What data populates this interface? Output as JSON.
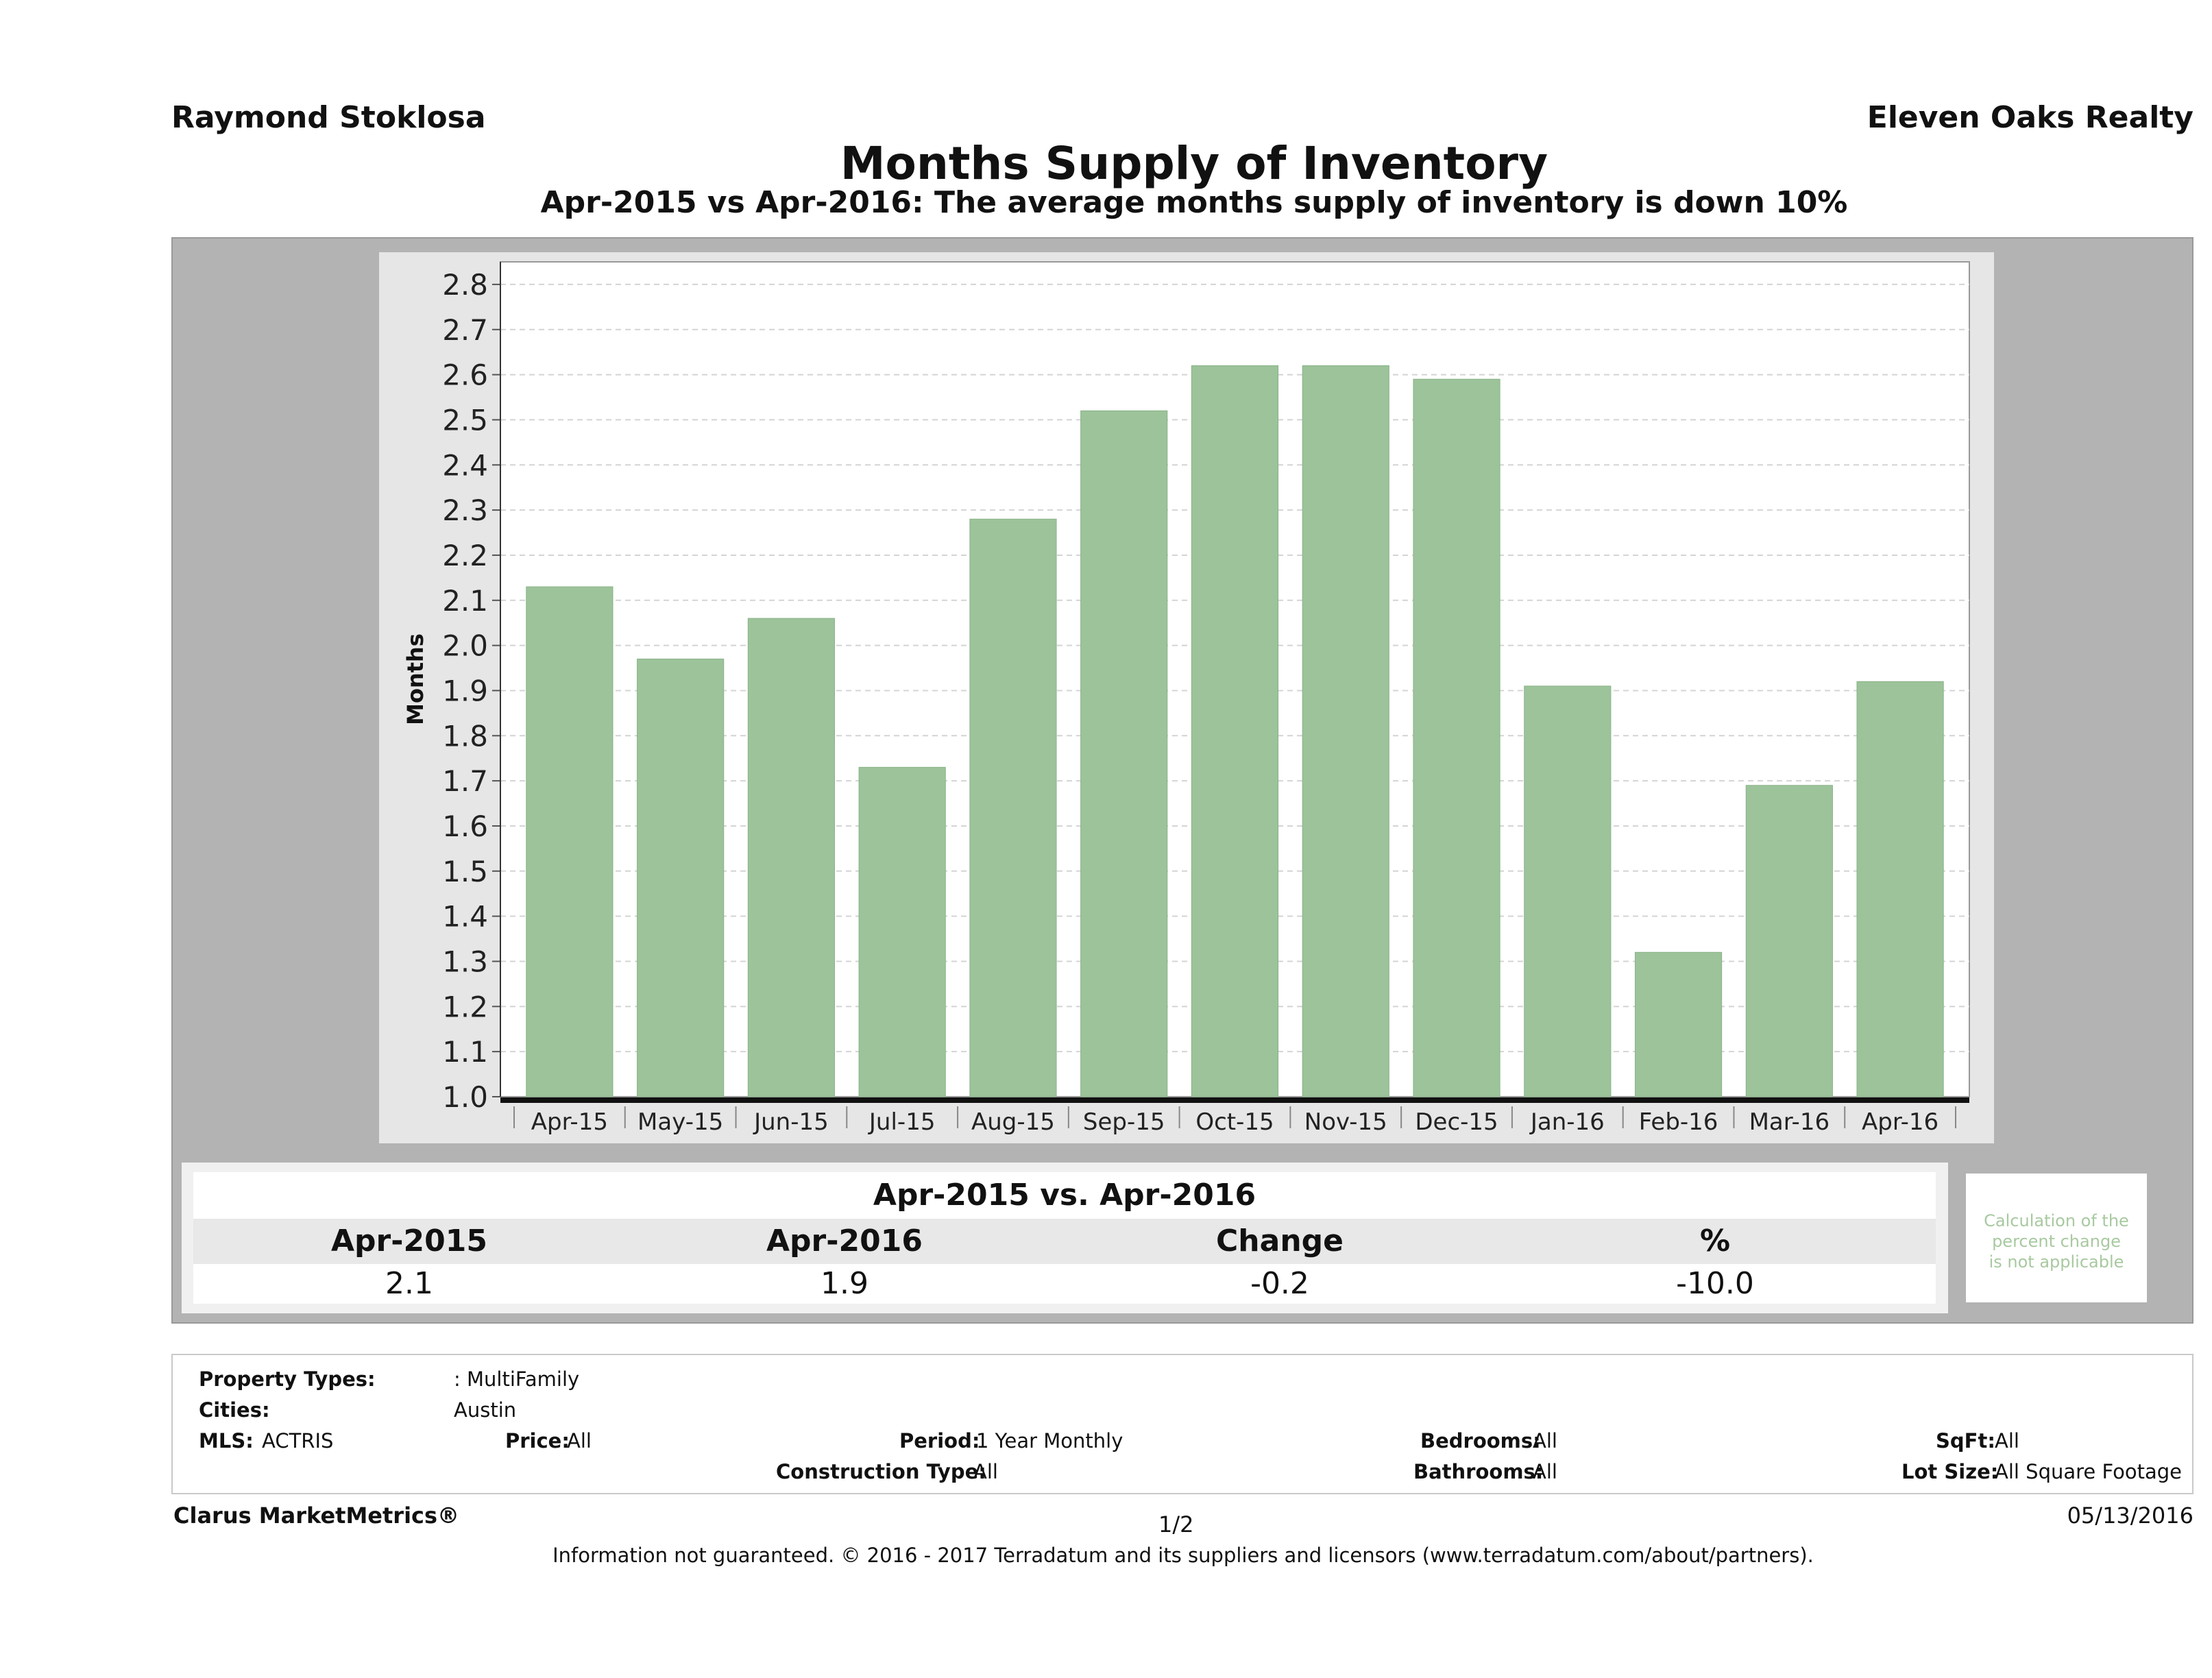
{
  "header": {
    "agent": "Raymond Stoklosa",
    "brokerage": "Eleven Oaks Realty",
    "title": "Months Supply of Inventory",
    "subtitle": "Apr-2015 vs Apr-2016: The average months supply of inventory is down 10%"
  },
  "chart_data": {
    "type": "bar",
    "ylabel": "Months",
    "ylim": [
      1.0,
      2.85
    ],
    "yticks": [
      "1.0",
      "1.1",
      "1.2",
      "1.3",
      "1.4",
      "1.5",
      "1.6",
      "1.7",
      "1.8",
      "1.9",
      "2.0",
      "2.1",
      "2.2",
      "2.3",
      "2.4",
      "2.5",
      "2.6",
      "2.7",
      "2.8"
    ],
    "grid": true,
    "bar_color": "#9cc39a",
    "categories": [
      "Apr-15",
      "May-15",
      "Jun-15",
      "Jul-15",
      "Aug-15",
      "Sep-15",
      "Oct-15",
      "Nov-15",
      "Dec-15",
      "Jan-16",
      "Feb-16",
      "Mar-16",
      "Apr-16"
    ],
    "values": [
      2.13,
      1.97,
      2.06,
      1.73,
      2.28,
      2.52,
      2.62,
      2.62,
      2.59,
      1.91,
      1.32,
      1.69,
      1.92
    ]
  },
  "summary": {
    "title": "Apr-2015 vs. Apr-2016",
    "headers": [
      "Apr-2015",
      "Apr-2016",
      "Change",
      "%"
    ],
    "values": [
      "2.1",
      "1.9",
      "-0.2",
      "-10.0"
    ],
    "note_line1": "Calculation of the",
    "note_line2": "percent change",
    "note_line3": "is not applicable"
  },
  "criteria": {
    "property_types_label": "Property Types:",
    "property_types_value": ": MultiFamily",
    "cities_label": "Cities:",
    "cities_value": "Austin",
    "mls_label": "MLS:",
    "mls_value": "ACTRIS",
    "price_label": "Price:",
    "price_value": "All",
    "period_label": "Period:",
    "period_value": "1 Year Monthly",
    "construction_label": "Construction Type:",
    "construction_value": "All",
    "bedrooms_label": "Bedrooms:",
    "bedrooms_value": "All",
    "bathrooms_label": "Bathrooms:",
    "bathrooms_value": "All",
    "sqft_label": "SqFt:",
    "sqft_value": "All",
    "lotsize_label": "Lot Size:",
    "lotsize_value": "All Square Footage"
  },
  "footer": {
    "product": "Clarus MarketMetrics®",
    "page": "1/2",
    "date": "05/13/2016",
    "disclaimer": "Information not guaranteed. © 2016 - 2017 Terradatum and its suppliers and licensors (www.terradatum.com/about/partners)."
  }
}
